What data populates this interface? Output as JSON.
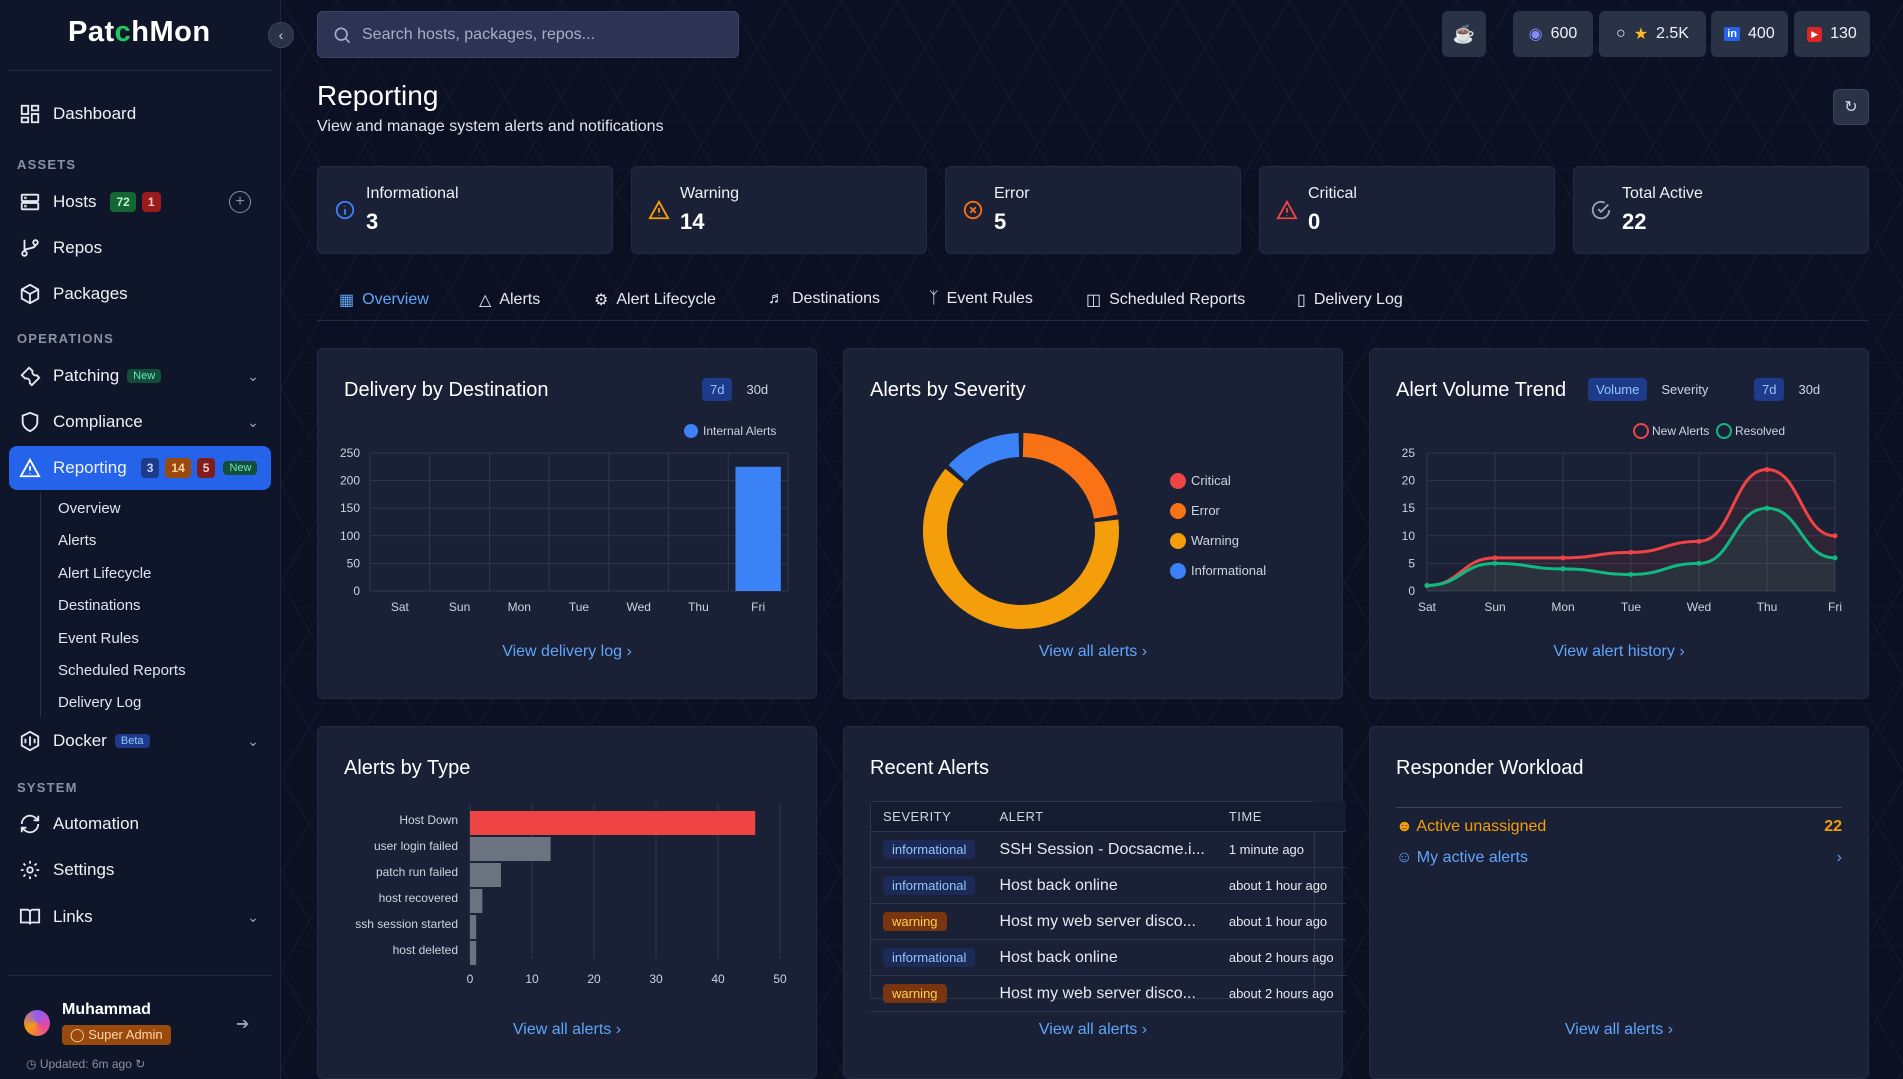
{
  "app": {
    "logo_pre": "Pat",
    "logo_accent": "c",
    "logo_post": "hMon"
  },
  "sidebar": {
    "dashboard": "Dashboard",
    "assets_heading": "ASSETS",
    "hosts": {
      "label": "Hosts",
      "count_green": "72",
      "count_red": "1"
    },
    "repos": "Repos",
    "packages": "Packages",
    "operations_heading": "OPERATIONS",
    "patching": {
      "label": "Patching",
      "tag": "New"
    },
    "compliance": "Compliance",
    "reporting": {
      "label": "Reporting",
      "b1": "3",
      "b2": "14",
      "b3": "5",
      "tag": "New"
    },
    "reporting_sub": [
      "Overview",
      "Alerts",
      "Alert Lifecycle",
      "Destinations",
      "Event Rules",
      "Scheduled Reports",
      "Delivery Log"
    ],
    "docker": {
      "label": "Docker",
      "tag": "Beta"
    },
    "system_heading": "SYSTEM",
    "automation": "Automation",
    "settings": "Settings",
    "links": "Links",
    "user": {
      "name": "Muhammad",
      "role": "Super Admin"
    },
    "updated": "Updated: 6m ago"
  },
  "search": {
    "placeholder": "Search hosts, packages, repos..."
  },
  "topbar": {
    "discord": "600",
    "github": "2.5K",
    "linkedin": "400",
    "youtube": "130"
  },
  "page": {
    "title": "Reporting",
    "subtitle": "View and manage system alerts and notifications"
  },
  "stats": [
    {
      "label": "Informational",
      "value": "3"
    },
    {
      "label": "Warning",
      "value": "14"
    },
    {
      "label": "Error",
      "value": "5"
    },
    {
      "label": "Critical",
      "value": "0"
    },
    {
      "label": "Total Active",
      "value": "22"
    }
  ],
  "tabs": [
    "Overview",
    "Alerts",
    "Alert Lifecycle",
    "Destinations",
    "Event Rules",
    "Scheduled Reports",
    "Delivery Log"
  ],
  "cards": {
    "delivery": {
      "title": "Delivery by Destination",
      "r1": "7d",
      "r2": "30d",
      "link": "View delivery log"
    },
    "severity": {
      "title": "Alerts by Severity",
      "link": "View all alerts"
    },
    "trend": {
      "title": "Alert Volume Trend",
      "m1": "Volume",
      "m2": "Severity",
      "r1": "7d",
      "r2": "30d",
      "link": "View alert history"
    },
    "type": {
      "title": "Alerts by Type",
      "link": "View all alerts"
    },
    "recent": {
      "title": "Recent Alerts",
      "h1": "SEVERITY",
      "h2": "ALERT",
      "h3": "TIME",
      "link": "View all alerts",
      "rows": [
        {
          "sev": "informational",
          "alert": "SSH Session - Docsacme.i...",
          "time": "1 minute ago"
        },
        {
          "sev": "informational",
          "alert": "Host back online",
          "time": "about 1 hour ago"
        },
        {
          "sev": "warning",
          "alert": "Host my web server disco...",
          "time": "about 1 hour ago"
        },
        {
          "sev": "informational",
          "alert": "Host back online",
          "time": "about 2 hours ago"
        },
        {
          "sev": "warning",
          "alert": "Host my web server disco...",
          "time": "about 2 hours ago"
        }
      ]
    },
    "workload": {
      "title": "Responder Workload",
      "r1": "Active unassigned",
      "r1v": "22",
      "r2": "My active alerts",
      "link": "View all alerts"
    }
  },
  "chart_data": [
    {
      "type": "bar",
      "title": "Delivery by Destination",
      "categories": [
        "Sat",
        "Sun",
        "Mon",
        "Tue",
        "Wed",
        "Thu",
        "Fri"
      ],
      "series": [
        {
          "name": "Internal Alerts",
          "values": [
            0,
            0,
            0,
            0,
            0,
            0,
            225
          ]
        }
      ],
      "ylim": [
        0,
        250
      ],
      "yticks": [
        0,
        50,
        100,
        150,
        200,
        250
      ],
      "color": "#3b82f6",
      "legend": "top-right",
      "grid": true
    },
    {
      "type": "pie",
      "title": "Alerts by Severity",
      "donut": true,
      "labels": [
        "Critical",
        "Error",
        "Warning",
        "Informational"
      ],
      "values": [
        0,
        5,
        14,
        3
      ],
      "colors": [
        "#ef4444",
        "#f97316",
        "#f59e0b",
        "#3b82f6"
      ],
      "legend": "right"
    },
    {
      "type": "line",
      "title": "Alert Volume Trend",
      "categories": [
        "Sat",
        "Sun",
        "Mon",
        "Tue",
        "Wed",
        "Thu",
        "Fri"
      ],
      "series": [
        {
          "name": "New Alerts",
          "values": [
            1,
            6,
            6,
            7,
            9,
            22,
            10
          ],
          "color": "#ef4444"
        },
        {
          "name": "Resolved",
          "values": [
            1,
            5,
            4,
            3,
            5,
            15,
            6
          ],
          "color": "#10b981"
        }
      ],
      "ylim": [
        0,
        25
      ],
      "yticks": [
        0,
        5,
        10,
        15,
        20,
        25
      ],
      "legend": "top-right",
      "grid": true
    },
    {
      "type": "bar",
      "orientation": "horizontal",
      "title": "Alerts by Type",
      "categories": [
        "Host Down",
        "user login failed",
        "patch run failed",
        "host recovered",
        "ssh session started",
        "host deleted"
      ],
      "values": [
        46,
        13,
        5,
        2,
        1,
        1
      ],
      "colors": [
        "#ef4444",
        "#6b7280",
        "#6b7280",
        "#6b7280",
        "#6b7280",
        "#6b7280"
      ],
      "xlim": [
        0,
        50
      ],
      "xticks": [
        0,
        10,
        20,
        30,
        40,
        50
      ],
      "grid": true
    }
  ]
}
